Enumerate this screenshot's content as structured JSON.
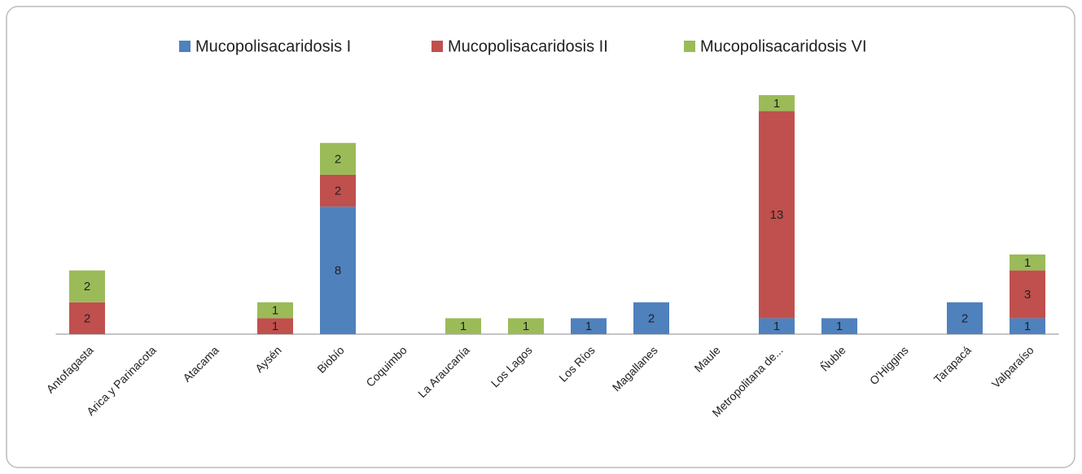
{
  "chart_data": {
    "type": "bar",
    "stacked": true,
    "categories": [
      "Antofagasta",
      "Arica y Parinacota",
      "Atacama",
      "Aysén",
      "Biobío",
      "Coquimbo",
      "La Araucanía",
      "Los Lagos",
      "Los Ríos",
      "Magallanes",
      "Maule",
      "Metropolitana de...",
      "Ñuble",
      "O'Higgins",
      "Tarapacá",
      "Valparaíso"
    ],
    "series": [
      {
        "name": "Mucopolisacaridosis I",
        "color": "#4f81bd",
        "values": [
          0,
          0,
          0,
          0,
          8,
          0,
          0,
          0,
          1,
          2,
          0,
          1,
          1,
          0,
          2,
          1
        ]
      },
      {
        "name": "Mucopolisacaridosis II",
        "color": "#c0504d",
        "values": [
          2,
          0,
          0,
          1,
          2,
          0,
          0,
          0,
          0,
          0,
          0,
          13,
          0,
          0,
          0,
          3
        ]
      },
      {
        "name": "Mucopolisacaridosis VI",
        "color": "#9bbb59",
        "values": [
          2,
          0,
          0,
          1,
          2,
          0,
          1,
          1,
          0,
          0,
          0,
          1,
          0,
          0,
          0,
          1
        ]
      }
    ],
    "ylim": [
      0,
      20
    ],
    "legend": "top"
  }
}
